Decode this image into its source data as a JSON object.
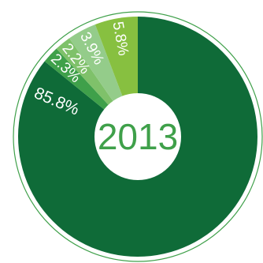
{
  "chart_data": {
    "type": "pie",
    "title": "",
    "center_label": "2013",
    "slices": [
      {
        "label": "85.8%",
        "value": 85.8,
        "color": "#0f6b38"
      },
      {
        "label": "2.3%",
        "value": 2.3,
        "color": "#3fa04a"
      },
      {
        "label": "2.2%",
        "value": 2.2,
        "color": "#7fc16a"
      },
      {
        "label": "3.9%",
        "value": 3.9,
        "color": "#94cc8a"
      },
      {
        "label": "5.8%",
        "value": 5.8,
        "color": "#87c040"
      }
    ],
    "colors": {
      "ring": "#3fa04a",
      "center_text": "#3fa04a",
      "center_fill": "#ffffff"
    }
  }
}
